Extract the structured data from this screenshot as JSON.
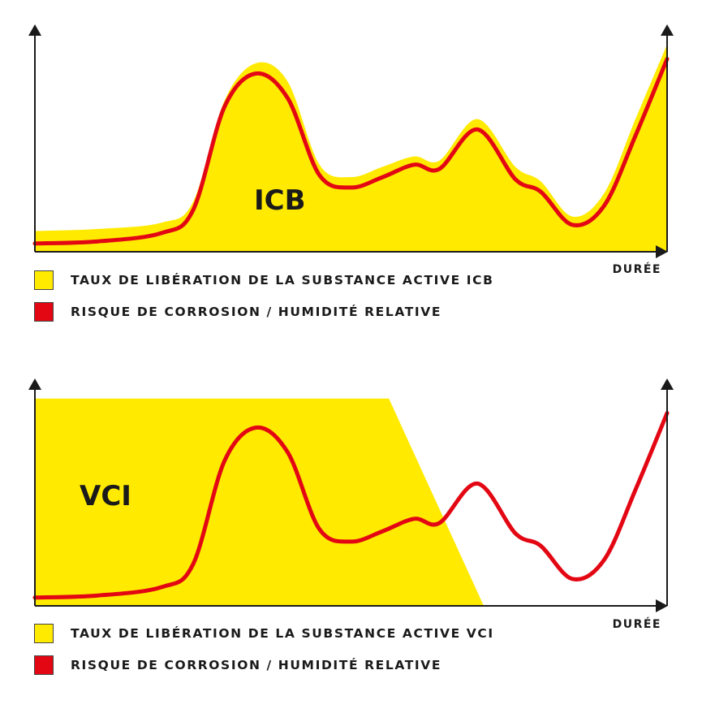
{
  "chart_data": [
    {
      "type": "area",
      "panel_label": "ICB",
      "xlabel": "DURÉE",
      "legend": [
        {
          "label": "TAUX DE LIBÉRATION DE LA SUBSTANCE ACTIVE ICB",
          "color": "#ffea00"
        },
        {
          "label": "RISQUE DE CORROSION / HUMIDITÉ RELATIVE",
          "color": "#e30613"
        }
      ],
      "x": [
        0,
        10,
        20,
        25,
        30,
        35,
        40,
        45,
        50,
        55,
        60,
        64,
        70,
        76,
        80,
        85,
        90,
        95,
        100
      ],
      "series": [
        {
          "name": "TAUX DE LIBÉRATION DE LA SUBSTANCE ACTIVE ICB",
          "color": "#ffea00",
          "kind": "area",
          "values": [
            10,
            11,
            14,
            24,
            73,
            91,
            82,
            42,
            36,
            41,
            46,
            44,
            64,
            41,
            34,
            17,
            28,
            64,
            100
          ]
        },
        {
          "name": "RISQUE DE CORROSION / HUMIDITÉ RELATIVE",
          "color": "#e30613",
          "kind": "line",
          "values": [
            4,
            5,
            9,
            20,
            70,
            86,
            74,
            37,
            31,
            36,
            42,
            40,
            59,
            35,
            29,
            13,
            22,
            56,
            93
          ]
        }
      ],
      "ylim": [
        0,
        105
      ],
      "xlim": [
        0,
        100
      ],
      "grid": false
    },
    {
      "type": "area",
      "panel_label": "VCI",
      "xlabel": "DURÉE",
      "legend": [
        {
          "label": "TAUX DE LIBÉRATION DE LA SUBSTANCE ACTIVE VCI",
          "color": "#ffea00"
        },
        {
          "label": "RISQUE DE CORROSION / HUMIDITÉ RELATIVE",
          "color": "#e30613"
        }
      ],
      "x": [
        0,
        10,
        20,
        25,
        30,
        35,
        40,
        45,
        50,
        55,
        60,
        64,
        70,
        76,
        80,
        85,
        90,
        95,
        100
      ],
      "series": [
        {
          "name": "TAUX DE LIBÉRATION DE LA SUBSTANCE ACTIVE VCI",
          "color": "#ffea00",
          "kind": "area",
          "points": [
            [
              0,
              100
            ],
            [
              56,
              100
            ],
            [
              71,
              0
            ],
            [
              0,
              0
            ]
          ]
        },
        {
          "name": "RISQUE DE CORROSION / HUMIDITÉ RELATIVE",
          "color": "#e30613",
          "kind": "line",
          "values": [
            4,
            5,
            9,
            20,
            70,
            86,
            74,
            37,
            31,
            36,
            42,
            40,
            59,
            35,
            29,
            13,
            22,
            56,
            93
          ]
        }
      ],
      "ylim": [
        0,
        105
      ],
      "xlim": [
        0,
        100
      ],
      "grid": false
    }
  ]
}
